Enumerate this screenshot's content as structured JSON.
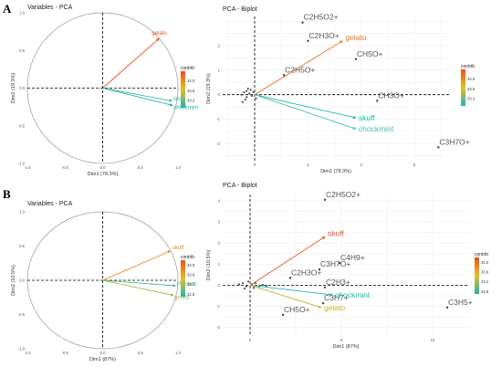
{
  "chart_data": [
    {
      "panel": "A",
      "type": "scatter",
      "title": "Variables - PCA",
      "xlabel": "Dim1 (78.3%)",
      "ylabel": "Dim2 (19.3%)",
      "xlim": [
        -1.0,
        1.0
      ],
      "ylim": [
        -1.0,
        1.0
      ],
      "xticks": [
        "-1.0",
        "-0.5",
        "0.0",
        "0.5",
        "1.0"
      ],
      "yticks": [
        "-1.0",
        "-0.5",
        "0.0",
        "0.5",
        "1.0"
      ],
      "grid": false,
      "vectors": [
        {
          "label": "gelato",
          "x": 0.75,
          "y": 0.66,
          "contrib": 34.4
        },
        {
          "label": "skuff",
          "x": 0.92,
          "y": -0.17,
          "contrib": 33.0
        },
        {
          "label": "chockmint",
          "x": 0.93,
          "y": -0.23,
          "contrib": 32.9
        }
      ],
      "legend": {
        "title": "contrib",
        "ticks": [
          "34.0",
          "33.6",
          "33.2"
        ],
        "range": [
          32.9,
          34.4
        ],
        "colors": [
          "#1fb5b3",
          "#e4c024",
          "#ef4f1b"
        ],
        "position": "right"
      }
    },
    {
      "panel": "A",
      "type": "scatter",
      "title": "PCA - Biplot",
      "xlabel": "Dim1 (78.3%)",
      "ylabel": "Dim2 (19.3%)",
      "xlim": [
        -1.2,
        7.3
      ],
      "ylim": [
        -2.7,
        3.2
      ],
      "xticks": [
        0,
        2,
        4,
        6
      ],
      "yticks": [
        -2,
        -1,
        0,
        1,
        2
      ],
      "grid": true,
      "points": [
        {
          "label": "C2H5O2+",
          "x": 1.8,
          "y": 2.95
        },
        {
          "label": "C2H3O+",
          "x": 2.0,
          "y": 2.2
        },
        {
          "label": "CH5O+",
          "x": 3.8,
          "y": 1.45
        },
        {
          "label": "C2H5O+",
          "x": 1.1,
          "y": 0.8
        },
        {
          "label": "CH3O+",
          "x": 4.6,
          "y": -0.25
        },
        {
          "label": "C3H7O+",
          "x": 6.9,
          "y": -2.15
        }
      ],
      "cluster": [
        {
          "x": -0.4,
          "y": 0.1
        },
        {
          "x": -0.3,
          "y": -0.1
        },
        {
          "x": -0.2,
          "y": 0.05
        },
        {
          "x": -0.35,
          "y": -0.2
        },
        {
          "x": -0.15,
          "y": 0.2
        },
        {
          "x": -0.1,
          "y": -0.05
        },
        {
          "x": -0.45,
          "y": -0.3
        },
        {
          "x": -0.25,
          "y": 0.25
        },
        {
          "x": -0.05,
          "y": 0.1
        },
        {
          "x": -0.5,
          "y": 0.0
        },
        {
          "x": 0.05,
          "y": -0.15
        },
        {
          "x": -0.3,
          "y": 0.15
        }
      ],
      "vectors": [
        {
          "label": "gelato",
          "x": 3.3,
          "y": 2.2,
          "color": "#e9772a"
        },
        {
          "label": "skuff",
          "x": 3.8,
          "y": -0.95,
          "color": "#1fb5b3"
        },
        {
          "label": "chockmint",
          "x": 3.8,
          "y": -1.4,
          "color": "#4fbeb5"
        }
      ],
      "legend": {
        "title": "contrib",
        "ticks": [
          "34.0",
          "33.6",
          "33.2"
        ],
        "range": [
          32.9,
          34.4
        ],
        "colors": [
          "#1fb5b3",
          "#e4c024",
          "#ef4f1b"
        ],
        "position": "right"
      }
    },
    {
      "panel": "B",
      "type": "scatter",
      "title": "Variables - PCA",
      "xlabel": "Dim1 (87%)",
      "ylabel": "Dim2 (10.5%)",
      "xlim": [
        -1.0,
        1.0
      ],
      "ylim": [
        -1.0,
        1.0
      ],
      "xticks": [
        "-1.0",
        "-0.5",
        "0.0",
        "0.5",
        "1.0"
      ],
      "yticks": [
        "-1.0",
        "-0.5",
        "0.0",
        "0.5",
        "1.0"
      ],
      "grid": false,
      "vectors": [
        {
          "label": "skuff",
          "x": 0.9,
          "y": 0.43,
          "contrib": 33.8
        },
        {
          "label": "chockmi",
          "x": 0.97,
          "y": -0.08,
          "contrib": 32.9
        },
        {
          "label": "gelato",
          "x": 0.94,
          "y": -0.22,
          "contrib": 33.2
        }
      ],
      "legend": {
        "title": "contrib",
        "ticks": [
          "34.0",
          "33.6",
          "33.2",
          "32.8"
        ],
        "range": [
          32.7,
          34.2
        ],
        "colors": [
          "#1fb5b3",
          "#e4c024",
          "#ef4f1b"
        ],
        "position": "right"
      }
    },
    {
      "panel": "B",
      "type": "scatter",
      "title": "PCA - Biplot",
      "xlabel": "Dim1 (87%)",
      "ylabel": "Dim2 (10.5%)",
      "xlim": [
        -1.5,
        12.0
      ],
      "ylim": [
        -2.4,
        4.3
      ],
      "xticks": [
        0,
        5,
        10
      ],
      "yticks": [
        -2,
        -1,
        0,
        1,
        2,
        3,
        4
      ],
      "grid": true,
      "points": [
        {
          "label": "C2H5O2+",
          "x": 4.1,
          "y": 4.05
        },
        {
          "label": "C4H9+",
          "x": 4.9,
          "y": 1.05
        },
        {
          "label": "C3H7O+",
          "x": 3.8,
          "y": 0.75
        },
        {
          "label": "C2H3O+",
          "x": 2.2,
          "y": 0.35
        },
        {
          "label": "C2H3+",
          "x": 4.1,
          "y": -0.1
        },
        {
          "label": "C3H7+",
          "x": 4.0,
          "y": -0.85
        },
        {
          "label": "CH5O+",
          "x": 1.8,
          "y": -1.4
        },
        {
          "label": "C3H5+",
          "x": 10.8,
          "y": -1.05
        }
      ],
      "cluster": [
        {
          "x": -0.4,
          "y": 0.1
        },
        {
          "x": -0.2,
          "y": -0.05
        },
        {
          "x": 0.1,
          "y": 0.05
        },
        {
          "x": -0.3,
          "y": -0.15
        },
        {
          "x": 0.3,
          "y": 0.1
        },
        {
          "x": 0.5,
          "y": -0.05
        },
        {
          "x": -0.6,
          "y": 0.05
        },
        {
          "x": 0.7,
          "y": 0.02
        },
        {
          "x": 0.2,
          "y": -0.12
        },
        {
          "x": -0.1,
          "y": 0.18
        },
        {
          "x": 0.9,
          "y": -0.02
        }
      ],
      "vectors": [
        {
          "label": "skuff",
          "x": 4.1,
          "y": 2.3,
          "color": "#e9562a"
        },
        {
          "label": "chockmint",
          "x": 4.5,
          "y": -0.45,
          "color": "#1fb5b3"
        },
        {
          "label": "gelato",
          "x": 3.9,
          "y": -1.05,
          "color": "#c9b22a"
        }
      ],
      "legend": {
        "title": "contrib",
        "ticks": [
          "34.0",
          "33.6",
          "33.2",
          "32.8"
        ],
        "range": [
          32.7,
          34.2
        ],
        "colors": [
          "#1fb5b3",
          "#e4c024",
          "#ef4f1b"
        ],
        "position": "right"
      }
    }
  ],
  "panels": [
    {
      "letter": "A"
    },
    {
      "letter": "B"
    }
  ],
  "colors": {
    "text": "#555555",
    "grid": "#ececec",
    "circle": "#9a9a9a",
    "vector_A_gelato": "#e9772a",
    "vector_A_skuff": "#1fb5b3",
    "vector_A_chockmint": "#4fbeb5",
    "vector_B_skuff": "#e9562a",
    "vector_B_chockmint": "#1fb5b3",
    "vector_B_gelato": "#c9b22a"
  }
}
